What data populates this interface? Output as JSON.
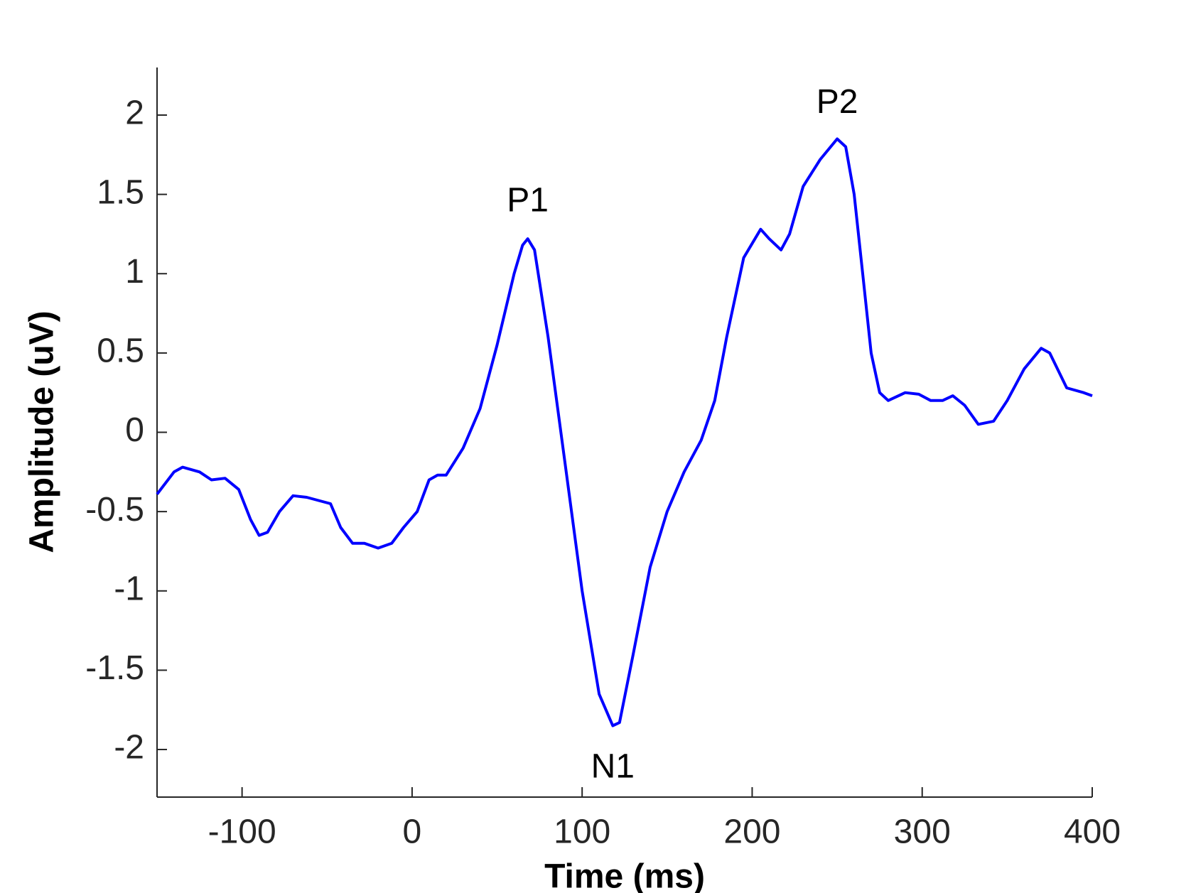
{
  "chart_data": {
    "type": "line",
    "xlabel": "Time (ms)",
    "ylabel": "Amplitude (uV)",
    "xlim": [
      -150,
      400
    ],
    "xticks": [
      -100,
      0,
      100,
      200,
      300,
      400
    ],
    "ylim": [
      -2.3,
      2.3
    ],
    "yticks": [
      -2,
      -1.5,
      -1,
      -0.5,
      0,
      0.5,
      1,
      1.5,
      2
    ],
    "annotations": [
      {
        "text": "P1",
        "x": 68,
        "y": 1.45
      },
      {
        "text": "N1",
        "x": 118,
        "y": -2.12
      },
      {
        "text": "P2",
        "x": 250,
        "y": 2.07
      }
    ],
    "series": [
      {
        "color": "#0000ff",
        "x": [
          -150,
          -140,
          -135,
          -125,
          -118,
          -110,
          -102,
          -95,
          -90,
          -85,
          -78,
          -70,
          -62,
          -55,
          -48,
          -42,
          -35,
          -28,
          -20,
          -12,
          -5,
          3,
          10,
          15,
          20,
          30,
          40,
          50,
          60,
          65,
          68,
          72,
          80,
          90,
          100,
          110,
          118,
          122,
          130,
          140,
          150,
          160,
          170,
          178,
          185,
          195,
          205,
          210,
          217,
          222,
          230,
          240,
          250,
          255,
          260,
          265,
          270,
          275,
          280,
          290,
          298,
          305,
          312,
          318,
          325,
          333,
          342,
          350,
          360,
          370,
          375,
          385,
          395,
          400
        ],
        "values": [
          -0.39,
          -0.25,
          -0.22,
          -0.25,
          -0.3,
          -0.29,
          -0.36,
          -0.55,
          -0.65,
          -0.63,
          -0.5,
          -0.4,
          -0.41,
          -0.43,
          -0.45,
          -0.6,
          -0.7,
          -0.7,
          -0.73,
          -0.7,
          -0.6,
          -0.5,
          -0.3,
          -0.27,
          -0.27,
          -0.1,
          0.15,
          0.55,
          1.0,
          1.18,
          1.22,
          1.15,
          0.6,
          -0.2,
          -1.0,
          -1.65,
          -1.85,
          -1.83,
          -1.4,
          -0.85,
          -0.5,
          -0.25,
          -0.05,
          0.2,
          0.6,
          1.1,
          1.28,
          1.22,
          1.15,
          1.25,
          1.55,
          1.72,
          1.85,
          1.8,
          1.5,
          1.0,
          0.5,
          0.25,
          0.2,
          0.25,
          0.24,
          0.2,
          0.2,
          0.23,
          0.17,
          0.05,
          0.07,
          0.2,
          0.4,
          0.53,
          0.5,
          0.28,
          0.25,
          0.23
        ]
      }
    ]
  }
}
